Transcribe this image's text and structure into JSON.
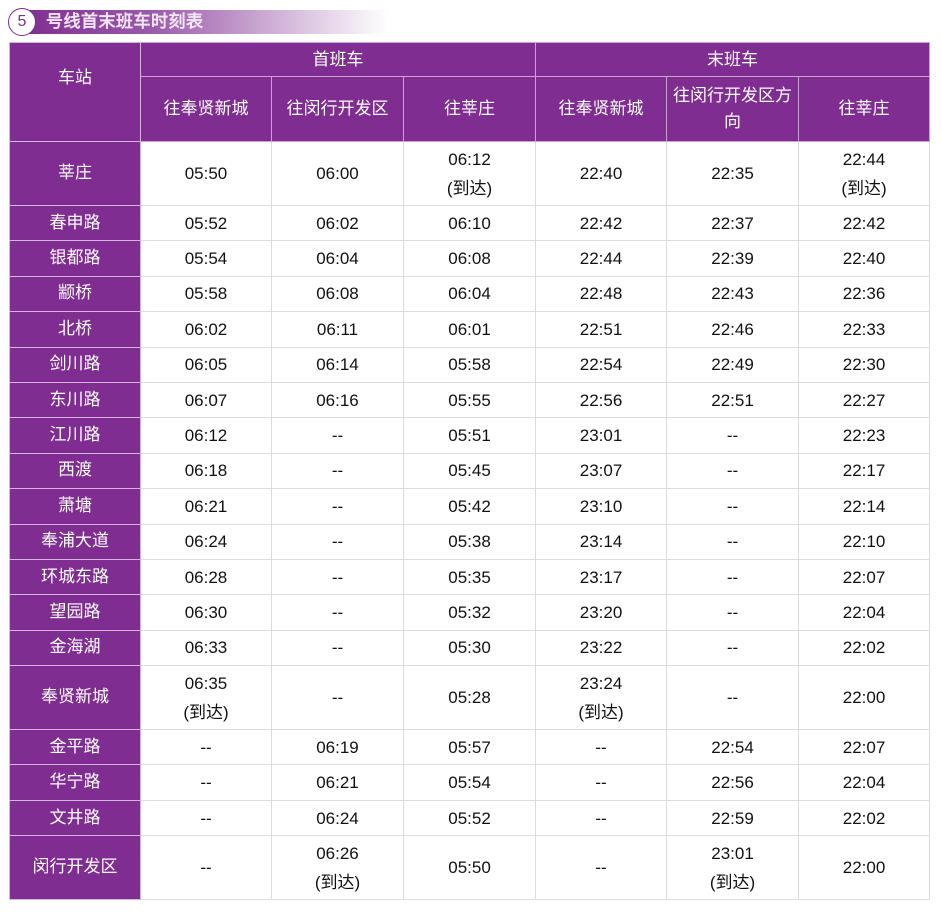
{
  "title": {
    "number": "5",
    "text": "号线首末班车时刻表"
  },
  "colors": {
    "header_bg": "#7f2d91",
    "header_text": "#ffffff"
  },
  "header": {
    "station": "车站",
    "first_train": "首班车",
    "last_train": "末班车",
    "first_dirs": [
      "往奉贤新城",
      "往闵行开发区",
      "往莘庄"
    ],
    "last_dirs": [
      "往奉贤新城",
      "往闵行开发区方向",
      "往莘庄"
    ]
  },
  "rows": [
    {
      "station": "莘庄",
      "times": [
        "05:50",
        "06:00",
        "06:12\n(到达)",
        "22:40",
        "22:35",
        "22:44\n(到达)"
      ]
    },
    {
      "station": "春申路",
      "times": [
        "05:52",
        "06:02",
        "06:10",
        "22:42",
        "22:37",
        "22:42"
      ]
    },
    {
      "station": "银都路",
      "times": [
        "05:54",
        "06:04",
        "06:08",
        "22:44",
        "22:39",
        "22:40"
      ]
    },
    {
      "station": "颛桥",
      "times": [
        "05:58",
        "06:08",
        "06:04",
        "22:48",
        "22:43",
        "22:36"
      ]
    },
    {
      "station": "北桥",
      "times": [
        "06:02",
        "06:11",
        "06:01",
        "22:51",
        "22:46",
        "22:33"
      ]
    },
    {
      "station": "剑川路",
      "times": [
        "06:05",
        "06:14",
        "05:58",
        "22:54",
        "22:49",
        "22:30"
      ]
    },
    {
      "station": "东川路",
      "times": [
        "06:07",
        "06:16",
        "05:55",
        "22:56",
        "22:51",
        "22:27"
      ]
    },
    {
      "station": "江川路",
      "times": [
        "06:12",
        "--",
        "05:51",
        "23:01",
        "--",
        "22:23"
      ]
    },
    {
      "station": "西渡",
      "times": [
        "06:18",
        "--",
        "05:45",
        "23:07",
        "--",
        "22:17"
      ]
    },
    {
      "station": "萧塘",
      "times": [
        "06:21",
        "--",
        "05:42",
        "23:10",
        "--",
        "22:14"
      ]
    },
    {
      "station": "奉浦大道",
      "times": [
        "06:24",
        "--",
        "05:38",
        "23:14",
        "--",
        "22:10"
      ]
    },
    {
      "station": "环城东路",
      "times": [
        "06:28",
        "--",
        "05:35",
        "23:17",
        "--",
        "22:07"
      ]
    },
    {
      "station": "望园路",
      "times": [
        "06:30",
        "--",
        "05:32",
        "23:20",
        "--",
        "22:04"
      ]
    },
    {
      "station": "金海湖",
      "times": [
        "06:33",
        "--",
        "05:30",
        "23:22",
        "--",
        "22:02"
      ]
    },
    {
      "station": "奉贤新城",
      "times": [
        "06:35\n(到达)",
        "--",
        "05:28",
        "23:24\n(到达)",
        "--",
        "22:00"
      ]
    },
    {
      "station": "金平路",
      "times": [
        "--",
        "06:19",
        "05:57",
        "--",
        "22:54",
        "22:07"
      ]
    },
    {
      "station": "华宁路",
      "times": [
        "--",
        "06:21",
        "05:54",
        "--",
        "22:56",
        "22:04"
      ]
    },
    {
      "station": "文井路",
      "times": [
        "--",
        "06:24",
        "05:52",
        "--",
        "22:59",
        "22:02"
      ]
    },
    {
      "station": "闵行开发区",
      "times": [
        "--",
        "06:26\n(到达)",
        "05:50",
        "--",
        "23:01\n(到达)",
        "22:00"
      ]
    }
  ]
}
